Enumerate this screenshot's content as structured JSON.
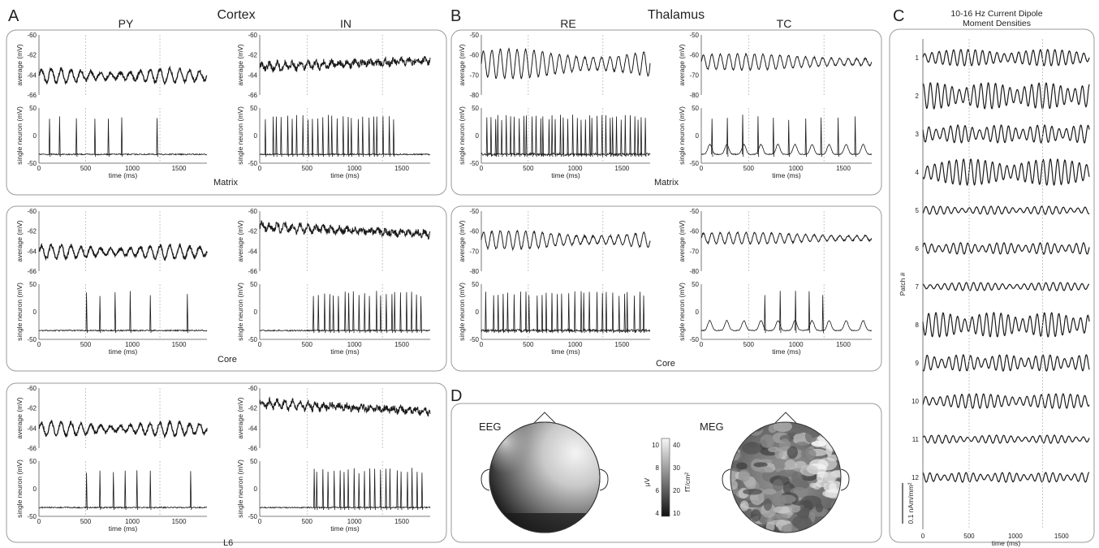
{
  "panels": {
    "A": {
      "letter": "A",
      "title": "Cortex",
      "col_left": "PY",
      "col_right": "IN"
    },
    "B": {
      "letter": "B",
      "title": "Thalamus",
      "col_left": "RE",
      "col_right": "TC"
    },
    "C": {
      "letter": "C",
      "title_line1": "10-16 Hz Current Dipole",
      "title_line2": "Moment Densities"
    },
    "D": {
      "letter": "D",
      "eeg_label": "EEG",
      "meg_label": "MEG"
    }
  },
  "rows": {
    "cortex": [
      {
        "tag": "Matrix"
      },
      {
        "tag": "Core"
      },
      {
        "tag": "L6"
      }
    ],
    "thalamus": [
      {
        "tag": "Matrix"
      },
      {
        "tag": "Core"
      }
    ]
  },
  "labels": {
    "average": "average (mV)",
    "single": "single neuron (mV)",
    "time": "time (ms)",
    "patch": "Patch #",
    "scale": "0.1 nAm/mm²",
    "colorbar_left": "μV",
    "colorbar_right": "fT/cm²"
  },
  "ticks": {
    "time": [
      "0",
      "500",
      "1000",
      "1500"
    ],
    "cortex_avg": [
      "-60",
      "-62",
      "-64",
      "-66"
    ],
    "thal_avg": [
      "-50",
      "-60",
      "-70",
      "-80"
    ],
    "single": [
      "50",
      "0",
      "-50"
    ],
    "patches": [
      "1",
      "2",
      "3",
      "4",
      "5",
      "6",
      "7",
      "8",
      "9",
      "10",
      "11",
      "12"
    ],
    "cbar_left": [
      "10",
      "8",
      "6",
      "4"
    ],
    "cbar_right": [
      "40",
      "30",
      "20",
      "10"
    ]
  },
  "chart_data": [
    {
      "type": "line",
      "panel": "A",
      "title": "Cortex",
      "columns": [
        "PY",
        "IN"
      ],
      "rows": [
        "Matrix",
        "Core",
        "L6"
      ],
      "xlabel": "time (ms)",
      "xlim": [
        0,
        1800
      ],
      "average_ylim": [
        -66,
        -60
      ],
      "single_ylim": [
        -60,
        50
      ],
      "average_ylabel": "average (mV)",
      "single_ylabel": "single neuron (mV)"
    },
    {
      "type": "line",
      "panel": "B",
      "title": "Thalamus",
      "columns": [
        "RE",
        "TC"
      ],
      "rows": [
        "Matrix",
        "Core"
      ],
      "xlabel": "time (ms)",
      "xlim": [
        0,
        1800
      ],
      "average_ylim": [
        -80,
        -50
      ],
      "single_ylim": [
        -60,
        50
      ],
      "average_ylabel": "average (mV)",
      "single_ylabel": "single neuron (mV)"
    },
    {
      "type": "line",
      "panel": "C",
      "title": "10-16 Hz Current Dipole Moment Densities",
      "xlabel": "time (ms)",
      "ylabel": "Patch #",
      "xlim": [
        0,
        1800
      ],
      "patches": [
        1,
        2,
        3,
        4,
        5,
        6,
        7,
        8,
        9,
        10,
        11,
        12
      ],
      "scale_bar": "0.1 nAm/mm²"
    },
    {
      "type": "heatmap",
      "panel": "D",
      "maps": [
        "EEG",
        "MEG"
      ],
      "colorbar": {
        "left_label": "μV",
        "left_range": [
          4,
          10
        ],
        "right_label": "fT/cm²",
        "right_range": [
          10,
          40
        ]
      }
    }
  ]
}
